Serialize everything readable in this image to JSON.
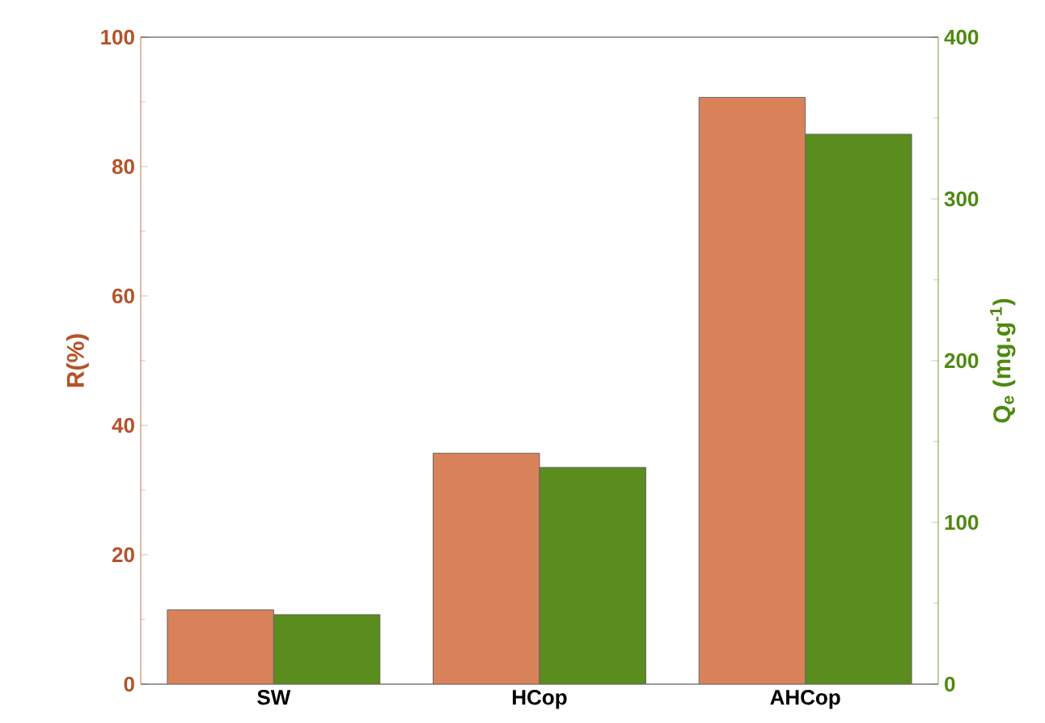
{
  "chart_data": {
    "type": "bar",
    "categories": [
      "SW",
      "HCop",
      "AHCop"
    ],
    "ylabel": "R(%)",
    "y2label": "Q$_{e}$ (mg.g$^{-1}$)",
    "ylim": [
      0,
      100
    ],
    "yticks": [
      0,
      20,
      40,
      60,
      80,
      100
    ],
    "y2lim": [
      0,
      400
    ],
    "y2ticks": [
      0,
      100,
      200,
      300,
      400
    ],
    "series": [
      {
        "color": "#d9825a",
        "values": [
          11.5,
          35.7,
          90.7
        ]
      },
      {
        "color": "#5a8c1e",
        "axis": "y2",
        "values": [
          43,
          134,
          340
        ]
      }
    ]
  }
}
